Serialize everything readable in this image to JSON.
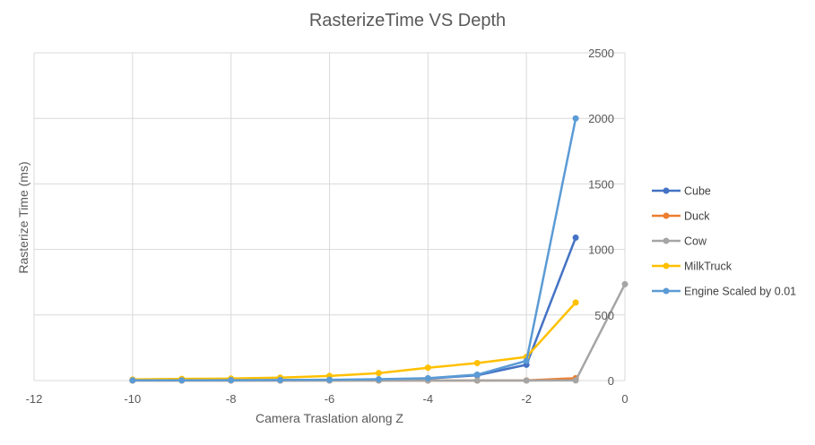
{
  "chart_data": {
    "type": "line",
    "title": "RasterizeTime VS Depth",
    "xlabel": "Camera Traslation along Z",
    "ylabel": "Rasterize Time (ms)",
    "xlim": [
      -12,
      0
    ],
    "ylim": [
      0,
      2500
    ],
    "x_ticks": [
      -12,
      -10,
      -8,
      -6,
      -4,
      -2,
      0
    ],
    "y_ticks": [
      0,
      500,
      1000,
      1500,
      2000,
      2500
    ],
    "y_axis_side": "right",
    "grid": true,
    "legend_position": "right",
    "x": [
      -10,
      -9,
      -8,
      -7,
      -6,
      -5,
      -4,
      -3,
      -2,
      -1
    ],
    "series": [
      {
        "name": "Cube",
        "color": "#4472C4",
        "values": [
          2,
          2,
          2,
          3,
          4,
          6,
          15,
          40,
          120,
          1090
        ]
      },
      {
        "name": "Duck",
        "color": "#ED7D31",
        "values": [
          0,
          0,
          0,
          0,
          0,
          0,
          0,
          0,
          1,
          18
        ]
      },
      {
        "name": "Cow",
        "color": "#A5A5A5",
        "values": [
          0,
          0,
          0,
          0,
          0,
          0,
          0,
          0,
          0,
          1,
          735
        ],
        "x": [
          -10,
          -9,
          -8,
          -7,
          -6,
          -5,
          -4,
          -3,
          -2,
          -1,
          0
        ]
      },
      {
        "name": "MilkTruck",
        "color": "#FFC000",
        "values": [
          8,
          13,
          15,
          22,
          35,
          57,
          98,
          133,
          180,
          595
        ]
      },
      {
        "name": "Engine Scaled by 0.01",
        "color": "#5B9BD5",
        "values": [
          2,
          2,
          3,
          4,
          6,
          10,
          18,
          45,
          150,
          2000
        ]
      }
    ]
  }
}
